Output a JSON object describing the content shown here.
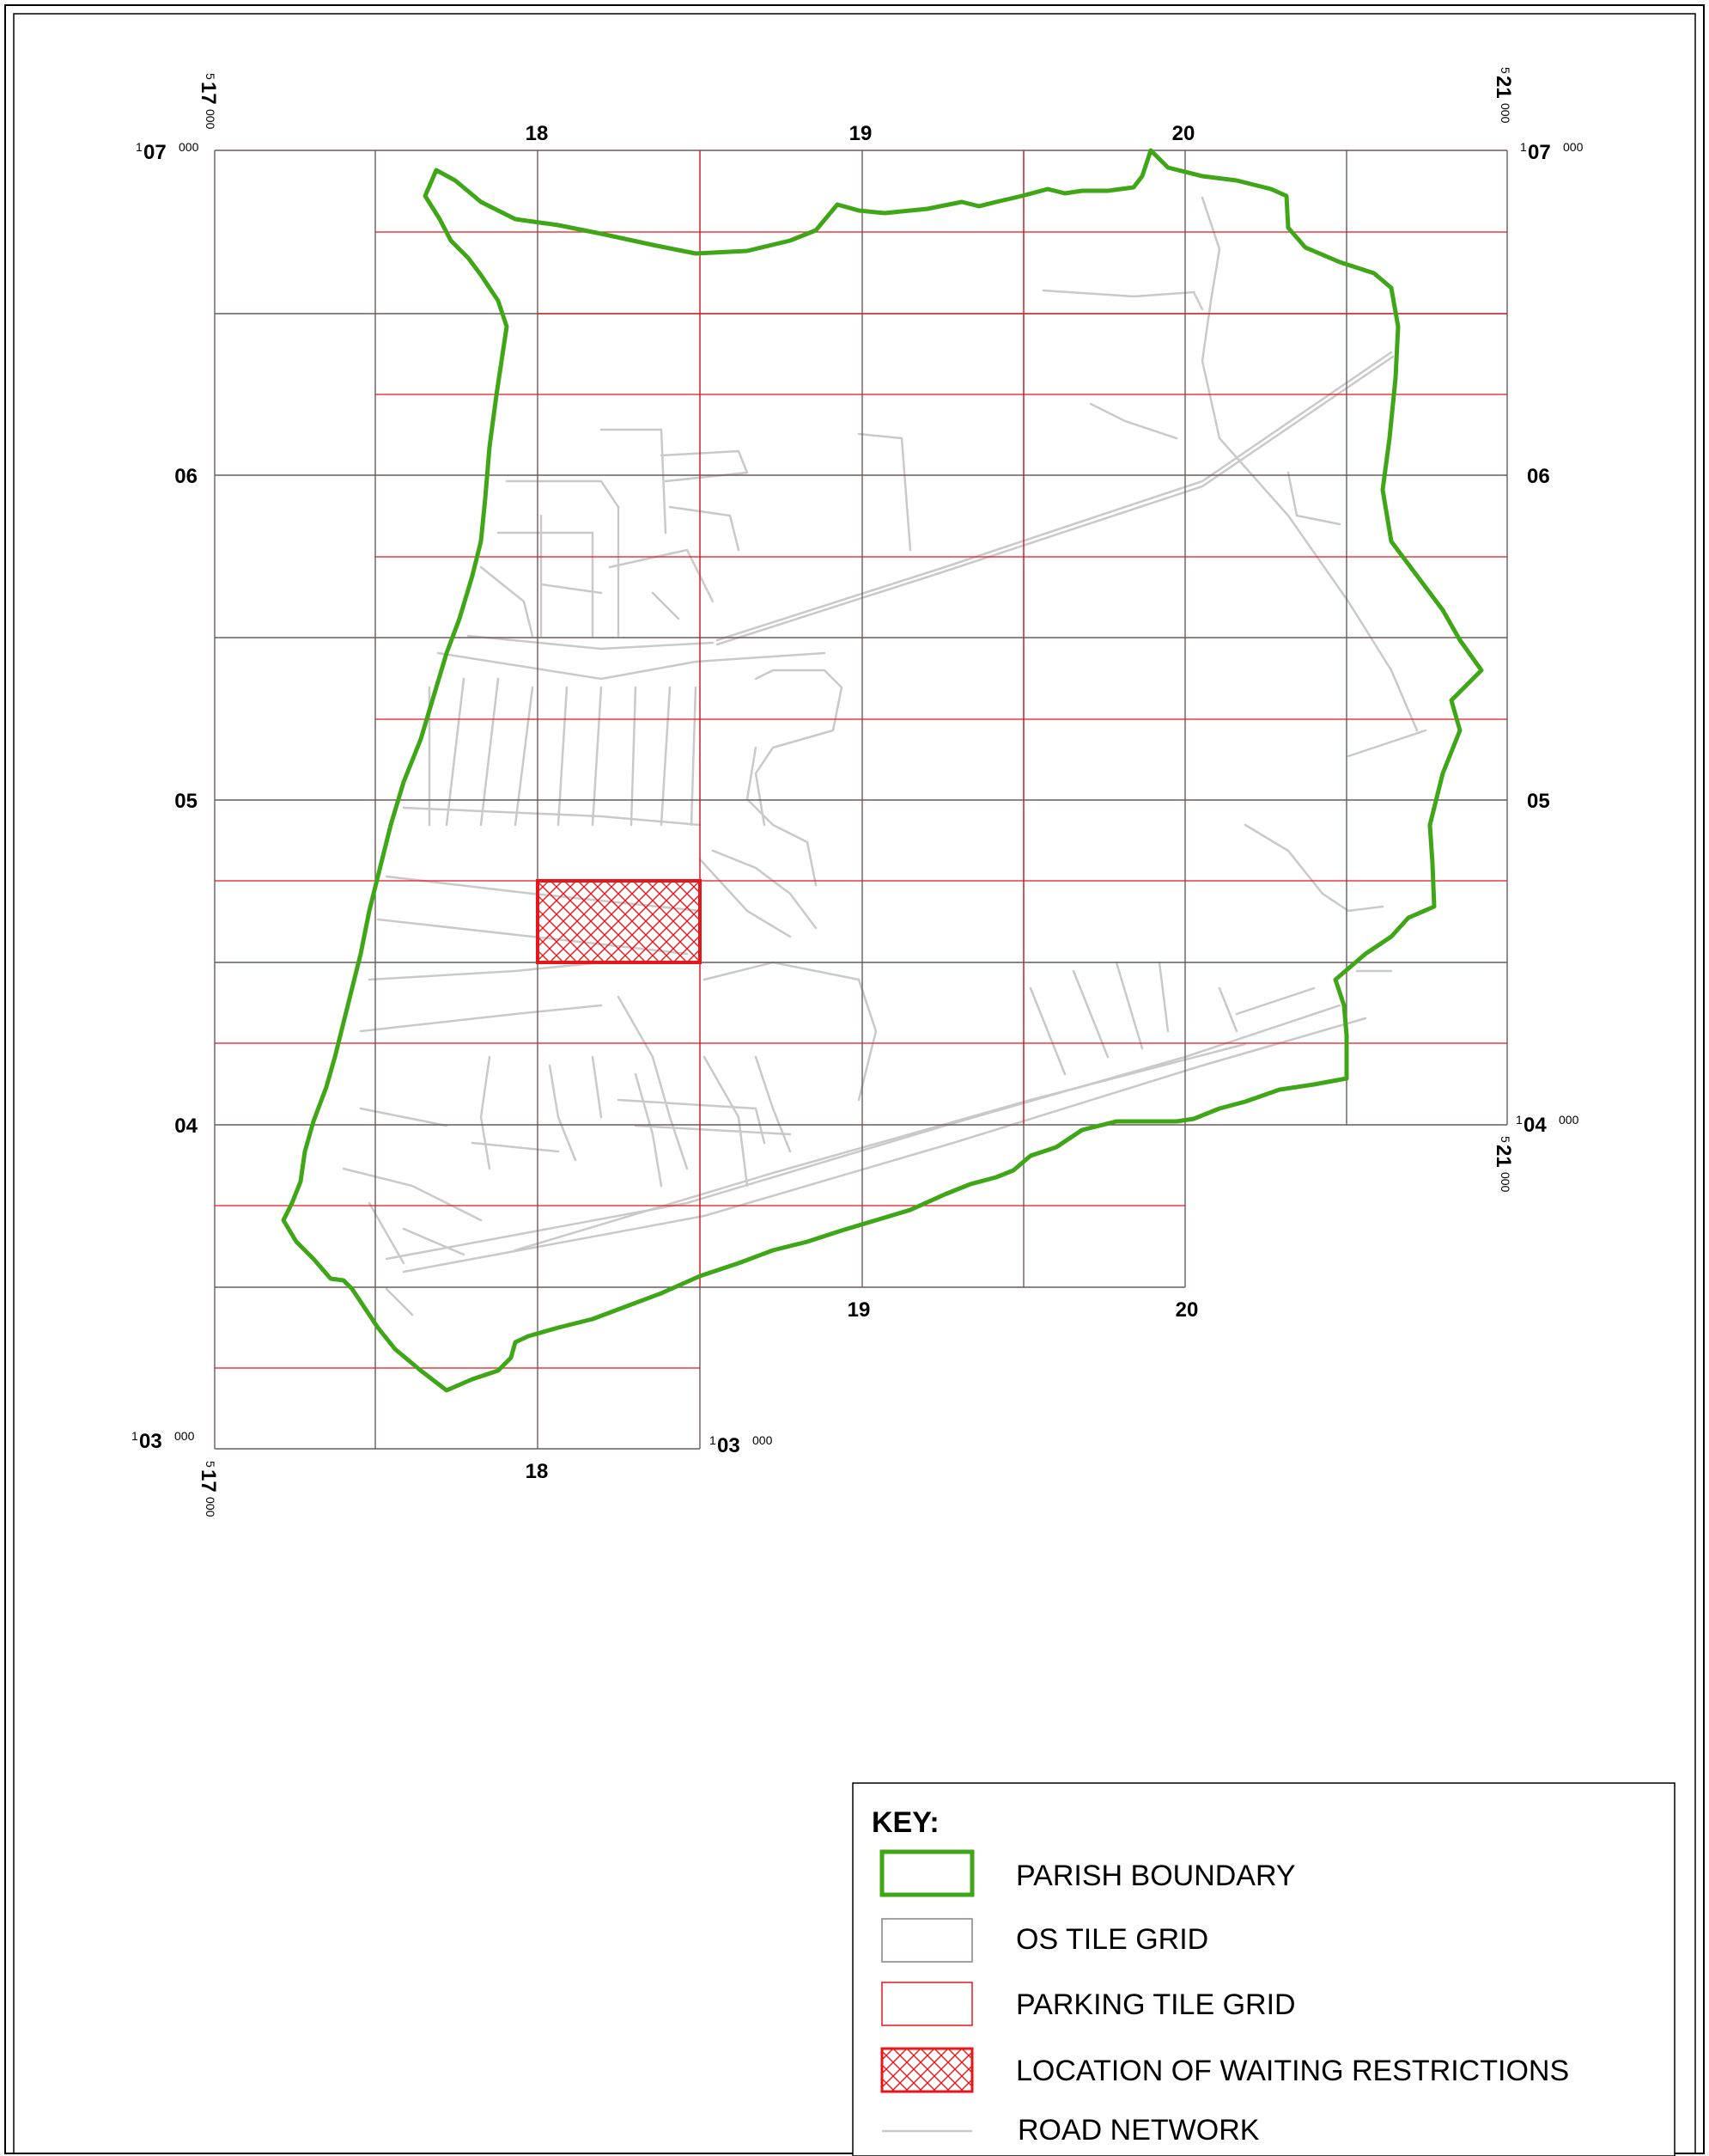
{
  "grid_labels": {
    "top_x": [
      "18",
      "19",
      "20"
    ],
    "bottom_x_left": "18",
    "bottom_x_right": [
      "19",
      "20"
    ],
    "left_y": [
      "06",
      "05",
      "04"
    ],
    "right_y": "06",
    "right_y_mid": "05",
    "corner_tl": {
      "small_prefix": "1",
      "main": "07",
      "suffix": "000"
    },
    "corner_tl_vert": {
      "small_prefix": "5",
      "main": "17",
      "suffix": "000"
    },
    "corner_tr": {
      "small_prefix": "1",
      "main": "07",
      "suffix": "000"
    },
    "corner_tr_vert": {
      "small_prefix": "5",
      "main": "21",
      "suffix": "000"
    },
    "corner_bl": {
      "small_prefix": "1",
      "main": "03",
      "suffix": "000"
    },
    "corner_bl_vert": {
      "small_prefix": "5",
      "main": "17",
      "suffix": "000"
    },
    "corner_bm": {
      "small_prefix": "1",
      "main": "03",
      "suffix": "000"
    },
    "corner_br": {
      "small_prefix": "1",
      "main": "04",
      "suffix": "000"
    },
    "corner_br_vert": {
      "small_prefix": "5",
      "main": "21",
      "suffix": "000"
    }
  },
  "key": {
    "title": "KEY:",
    "items": [
      {
        "label": "PARISH BOUNDARY",
        "symbol": "green-outline"
      },
      {
        "label": "OS TILE GRID",
        "symbol": "grey-outline"
      },
      {
        "label": "PARKING TILE GRID",
        "symbol": "red-outline"
      },
      {
        "label": "LOCATION OF WAITING RESTRICTIONS",
        "symbol": "red-crosshatch"
      },
      {
        "label": "ROAD NETWORK",
        "symbol": "grey-line"
      }
    ]
  },
  "colors": {
    "parish_boundary": "#3fa617",
    "os_grid": "#6b5a5a",
    "parking_grid": "#e8151b",
    "restriction": "#e8151b",
    "roads": "#c9c9c9"
  }
}
